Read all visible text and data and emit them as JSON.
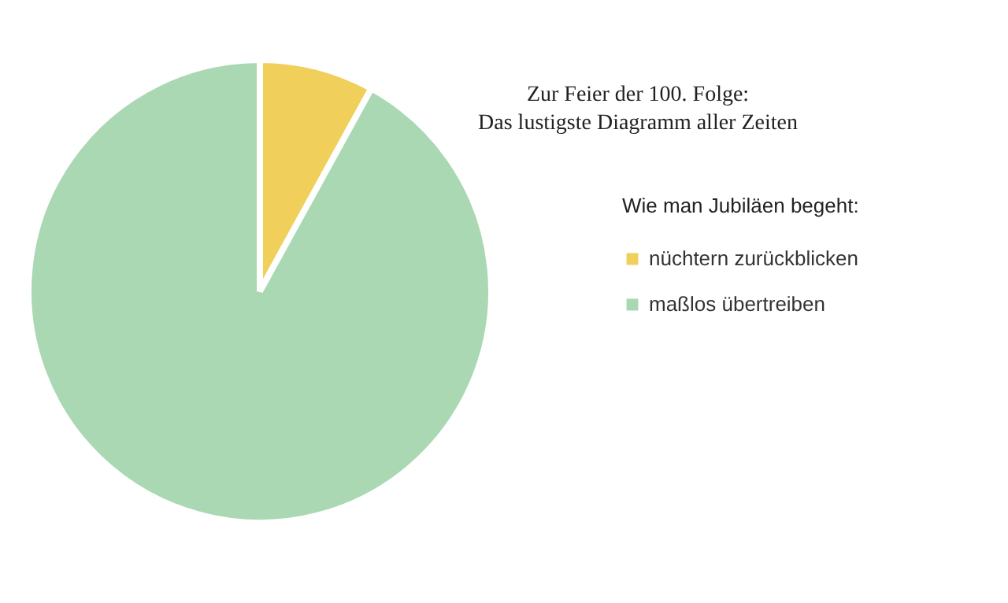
{
  "chart_data": {
    "type": "pie",
    "title": "Zur Feier der 100. Folge:",
    "subtitle": "Das lustigste Diagramm aller Zeiten",
    "legend_title": "Wie man Jubiläen begeht:",
    "categories": [
      "nüchtern zurückblicken",
      "maßlos übertreiben"
    ],
    "values": [
      8,
      92
    ],
    "colors": [
      "#f0cf5a",
      "#a9d8b2"
    ],
    "legend": "right"
  }
}
